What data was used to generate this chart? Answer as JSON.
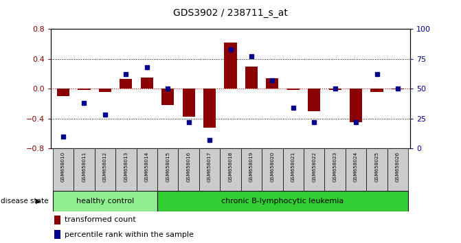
{
  "title": "GDS3902 / 238711_s_at",
  "samples": [
    "GSM658010",
    "GSM658011",
    "GSM658012",
    "GSM658013",
    "GSM658014",
    "GSM658015",
    "GSM658016",
    "GSM658017",
    "GSM658018",
    "GSM658019",
    "GSM658020",
    "GSM658021",
    "GSM658022",
    "GSM658023",
    "GSM658024",
    "GSM658025",
    "GSM658026"
  ],
  "transformed_count": [
    -0.1,
    -0.02,
    -0.04,
    0.13,
    0.15,
    -0.22,
    -0.38,
    -0.52,
    0.62,
    0.3,
    0.14,
    -0.02,
    -0.3,
    -0.02,
    -0.45,
    -0.04,
    -0.01
  ],
  "percentile_rank": [
    10,
    38,
    28,
    62,
    68,
    50,
    22,
    7,
    83,
    77,
    57,
    34,
    22,
    50,
    22,
    62,
    50
  ],
  "healthy_count": 5,
  "leukemia_count": 12,
  "ylim_left": [
    -0.8,
    0.8
  ],
  "yticks_left": [
    -0.8,
    -0.4,
    0.0,
    0.4,
    0.8
  ],
  "yticks_right": [
    0,
    25,
    50,
    75,
    100
  ],
  "bar_color": "#8b0000",
  "dot_color": "#00008b",
  "zero_line_color": "#cc0000",
  "hc_color": "#90ee90",
  "leuk_color": "#32cd32",
  "bg_color": "#ffffff",
  "disease_state_label": "disease state",
  "hc_label": "healthy control",
  "leuk_label": "chronic B-lymphocytic leukemia",
  "legend_bar_label": "transformed count",
  "legend_dot_label": "percentile rank within the sample"
}
